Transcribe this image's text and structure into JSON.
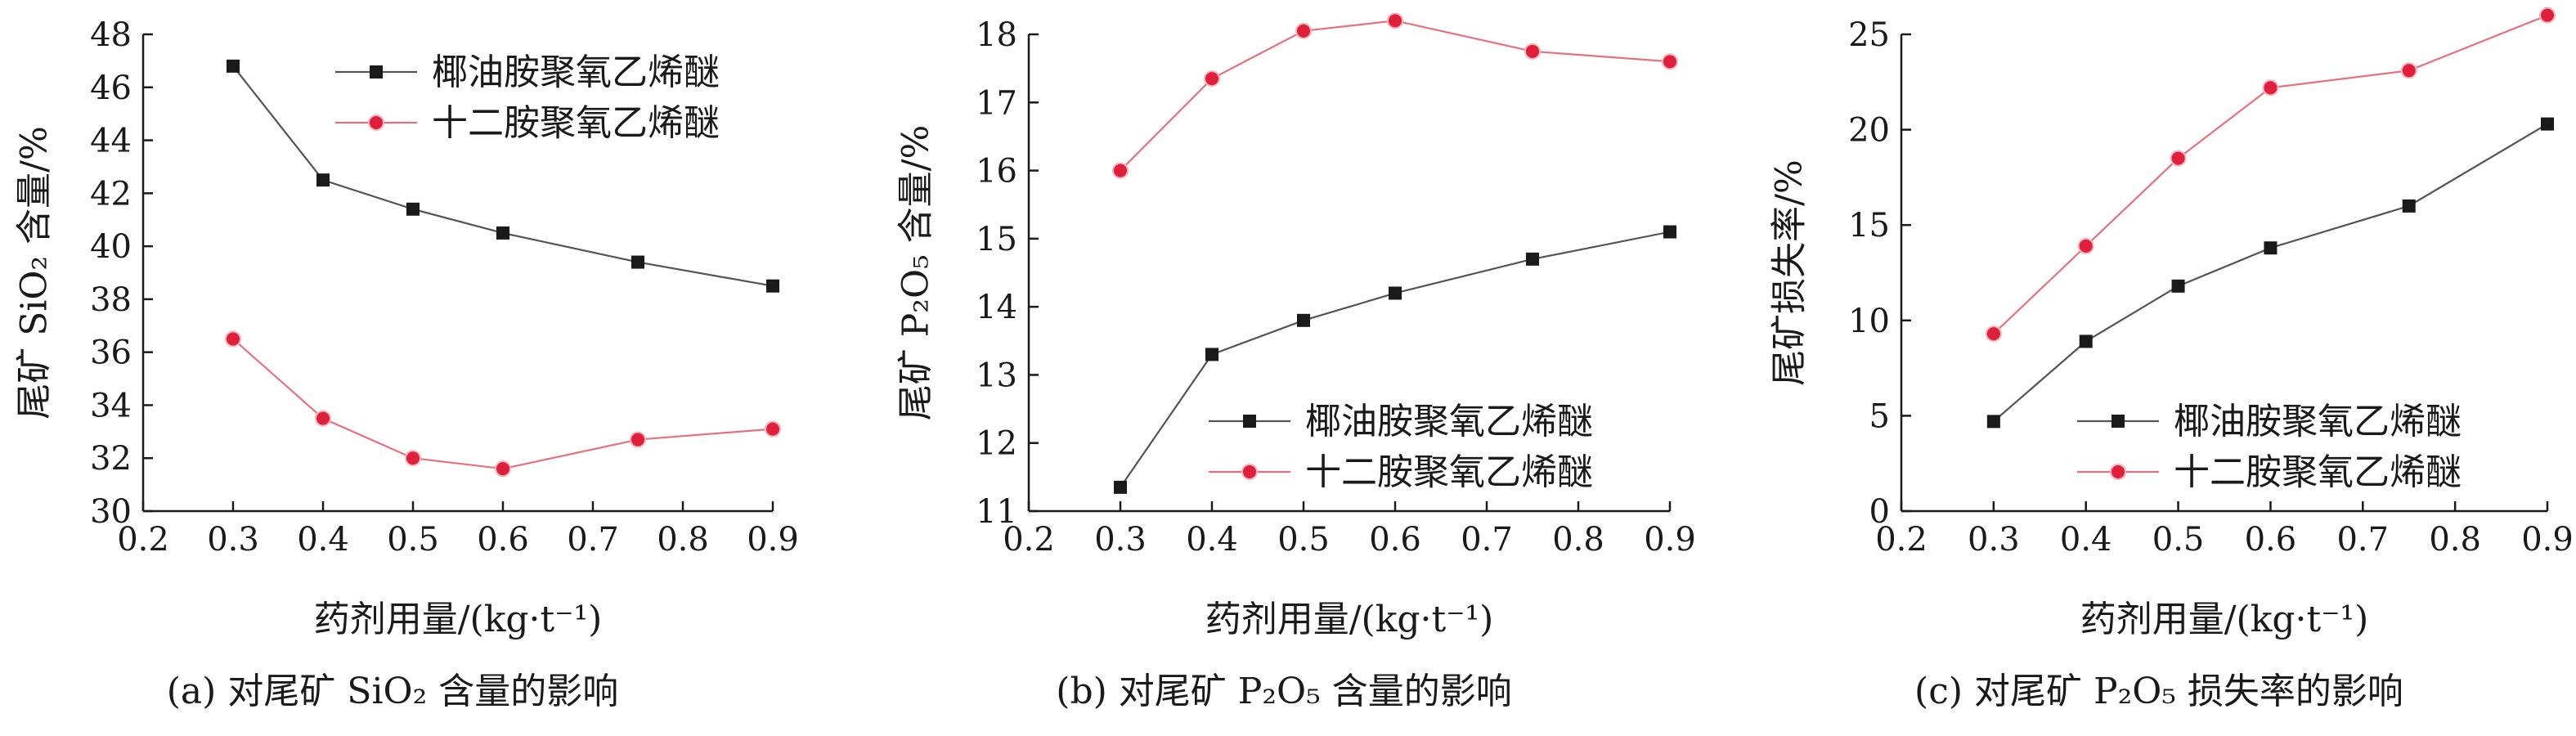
{
  "chart_data": [
    {
      "type": "line",
      "caption": "(a) 对尾矿 SiO₂ 含量的影响",
      "xlabel": "药剂用量/(kg·t⁻¹)",
      "ylabel": "尾矿 SiO₂ 含量/%",
      "xlim": [
        0.2,
        0.9
      ],
      "ylim": [
        30,
        48
      ],
      "xticks": [
        0.2,
        0.3,
        0.4,
        0.5,
        0.6,
        0.7,
        0.8,
        0.9
      ],
      "yticks": [
        30,
        32,
        34,
        36,
        38,
        40,
        42,
        44,
        46,
        48
      ],
      "legend_position": "top-right",
      "x": [
        0.3,
        0.4,
        0.5,
        0.6,
        0.75,
        0.9
      ],
      "series": [
        {
          "name": "椰油胺聚氧乙烯醚",
          "values": [
            46.8,
            42.5,
            41.4,
            40.5,
            39.4,
            38.5
          ],
          "color": "#1a1a1a",
          "marker": "square"
        },
        {
          "name": "十二胺聚氧乙烯醚",
          "values": [
            36.5,
            33.5,
            32.0,
            31.6,
            32.7,
            33.1
          ],
          "color": "#e0203a",
          "marker": "circle"
        }
      ]
    },
    {
      "type": "line",
      "caption": "(b) 对尾矿 P₂O₅ 含量的影响",
      "xlabel": "药剂用量/(kg·t⁻¹)",
      "ylabel": "尾矿 P₂O₅ 含量/%",
      "xlim": [
        0.2,
        0.9
      ],
      "ylim": [
        11,
        18
      ],
      "xticks": [
        0.2,
        0.3,
        0.4,
        0.5,
        0.6,
        0.7,
        0.8,
        0.9
      ],
      "yticks": [
        11,
        12,
        13,
        14,
        15,
        16,
        17,
        18
      ],
      "legend_position": "bottom-right",
      "x": [
        0.3,
        0.4,
        0.5,
        0.6,
        0.75,
        0.9
      ],
      "series": [
        {
          "name": "椰油胺聚氧乙烯醚",
          "values": [
            11.35,
            13.3,
            13.8,
            14.2,
            14.7,
            15.1
          ],
          "color": "#1a1a1a",
          "marker": "square"
        },
        {
          "name": "十二胺聚氧乙烯醚",
          "values": [
            16.0,
            17.35,
            18.05,
            18.2,
            17.75,
            17.6
          ],
          "color": "#e0203a",
          "marker": "circle"
        }
      ]
    },
    {
      "type": "line",
      "caption": "(c) 对尾矿 P₂O₅ 损失率的影响",
      "xlabel": "药剂用量/(kg·t⁻¹)",
      "ylabel": "尾矿损失率/%",
      "xlim": [
        0.2,
        0.9
      ],
      "ylim": [
        0,
        25
      ],
      "xticks": [
        0.2,
        0.3,
        0.4,
        0.5,
        0.6,
        0.7,
        0.8,
        0.9
      ],
      "yticks": [
        0,
        5,
        10,
        15,
        20,
        25
      ],
      "legend_position": "bottom-right",
      "x": [
        0.3,
        0.4,
        0.5,
        0.6,
        0.75,
        0.9
      ],
      "series": [
        {
          "name": "椰油胺聚氧乙烯醚",
          "values": [
            4.7,
            8.9,
            11.8,
            13.8,
            16.0,
            20.3
          ],
          "color": "#1a1a1a",
          "marker": "square"
        },
        {
          "name": "十二胺聚氧乙烯醚",
          "values": [
            9.3,
            13.9,
            18.5,
            22.2,
            23.1,
            26.0
          ],
          "color": "#e0203a",
          "marker": "circle"
        }
      ]
    }
  ]
}
